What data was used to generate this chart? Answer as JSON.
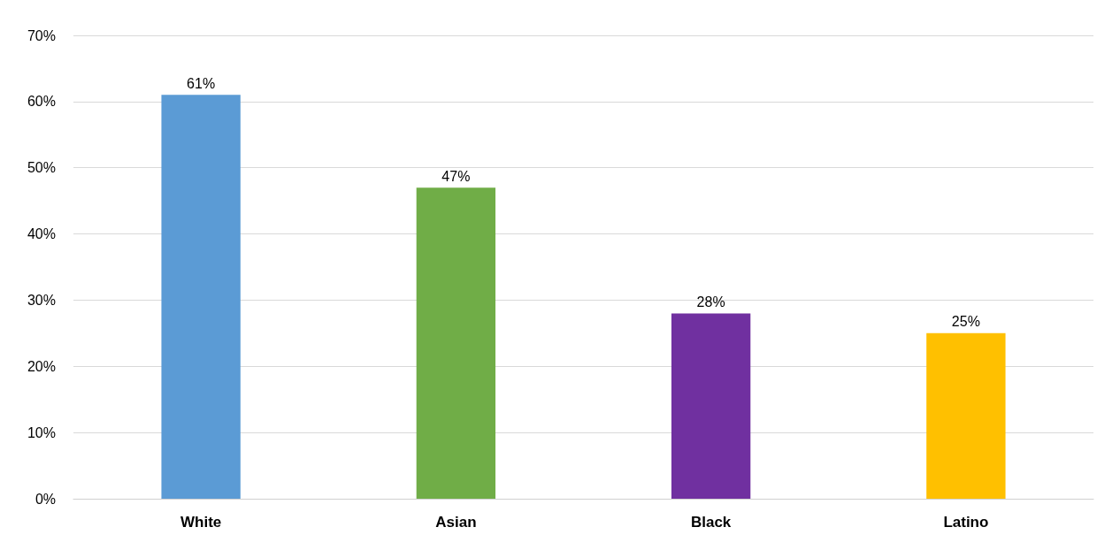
{
  "chart_data": {
    "type": "bar",
    "categories": [
      "White",
      "Asian",
      "Black",
      "Latino"
    ],
    "values": [
      61,
      47,
      28,
      25
    ],
    "colors": [
      "#5b9bd5",
      "#70ad47",
      "#7030a0",
      "#ffc000"
    ],
    "ylim": [
      0,
      70
    ],
    "yticks": [
      {
        "value": 0,
        "label": "0%"
      },
      {
        "value": 10,
        "label": "10%"
      },
      {
        "value": 20,
        "label": "20%"
      },
      {
        "value": 30,
        "label": "30%"
      },
      {
        "value": 40,
        "label": "40%"
      },
      {
        "value": 50,
        "label": "50%"
      },
      {
        "value": 60,
        "label": "60%"
      },
      {
        "value": 70,
        "label": "70%"
      }
    ],
    "value_labels": [
      "61%",
      "47%",
      "28%",
      "25%"
    ],
    "grid": "y"
  }
}
